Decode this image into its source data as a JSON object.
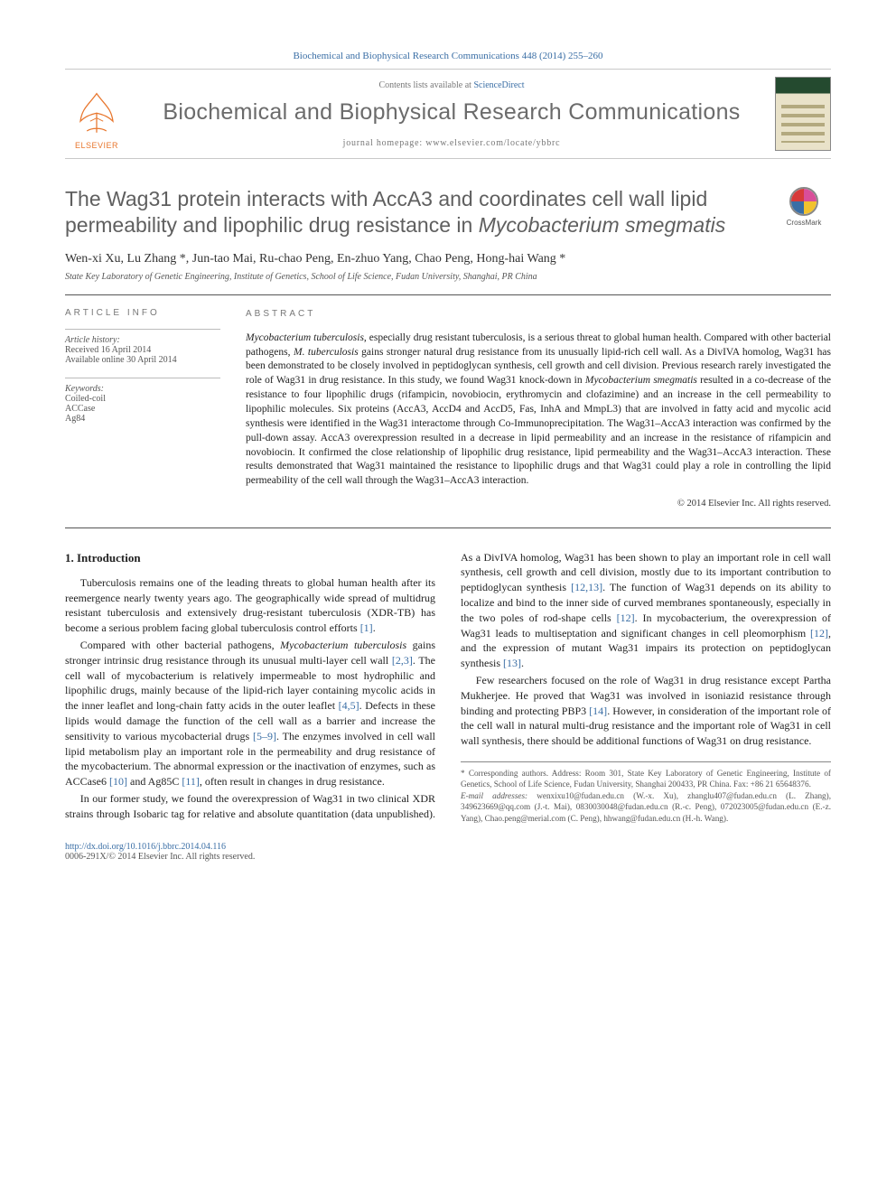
{
  "citation_header": "Biochemical and Biophysical Research Communications 448 (2014) 255–260",
  "contents_prefix": "Contents lists available at ",
  "contents_link": "ScienceDirect",
  "journal_title": "Biochemical and Biophysical Research Communications",
  "journal_home_prefix": "journal homepage: ",
  "journal_home_url": "www.elsevier.com/locate/ybbrc",
  "publisher_word": "ELSEVIER",
  "crossmark_label": "CrossMark",
  "article_title_plain": "The Wag31 protein interacts with AccA3 and coordinates cell wall lipid permeability and lipophilic drug resistance in ",
  "article_title_ital": "Mycobacterium smegmatis",
  "authors_line": "Wen-xi Xu, Lu Zhang *, Jun-tao Mai, Ru-chao Peng, En-zhuo Yang, Chao Peng, Hong-hai Wang *",
  "affiliation": "State Key Laboratory of Genetic Engineering, Institute of Genetics, School of Life Science, Fudan University, Shanghai, PR China",
  "article_info": {
    "heading": "ARTICLE INFO",
    "history_head": "Article history:",
    "received": "Received 16 April 2014",
    "online": "Available online 30 April 2014",
    "keywords_head": "Keywords:",
    "keywords": [
      "Coiled-coil",
      "ACCase",
      "Ag84"
    ]
  },
  "abstract": {
    "heading": "ABSTRACT",
    "body_parts": [
      {
        "ital": true,
        "text": "Mycobacterium tuberculosis"
      },
      {
        "ital": false,
        "text": ", especially drug resistant tuberculosis, is a serious threat to global human health. Compared with other bacterial pathogens, "
      },
      {
        "ital": true,
        "text": "M. tuberculosis"
      },
      {
        "ital": false,
        "text": " gains stronger natural drug resistance from its unusually lipid-rich cell wall. As a DivIVA homolog, Wag31 has been demonstrated to be closely involved in peptidoglycan synthesis, cell growth and cell division. Previous research rarely investigated the role of Wag31 in drug resistance. In this study, we found Wag31 knock-down in "
      },
      {
        "ital": true,
        "text": "Mycobacterium smegmatis"
      },
      {
        "ital": false,
        "text": " resulted in a co-decrease of the resistance to four lipophilic drugs (rifampicin, novobiocin, erythromycin and clofazimine) and an increase in the cell permeability to lipophilic molecules. Six proteins (AccA3, AccD4 and AccD5, Fas, InhA and MmpL3) that are involved in fatty acid and mycolic acid synthesis were identified in the Wag31 interactome through Co-Immunoprecipitation. The Wag31–AccA3 interaction was confirmed by the pull-down assay. AccA3 overexpression resulted in a decrease in lipid permeability and an increase in the resistance of rifampicin and novobiocin. It confirmed the close relationship of lipophilic drug resistance, lipid permeability and the Wag31–AccA3 interaction. These results demonstrated that Wag31 maintained the resistance to lipophilic drugs and that Wag31 could play a role in controlling the lipid permeability of the cell wall through the Wag31–AccA3 interaction."
      }
    ],
    "copyright": "© 2014 Elsevier Inc. All rights reserved."
  },
  "section1": {
    "heading": "1. Introduction",
    "p1": "Tuberculosis remains one of the leading threats to global human health after its reemergence nearly twenty years ago. The geographically wide spread of multidrug resistant tuberculosis and extensively drug-resistant tuberculosis (XDR-TB) has become a serious problem facing global tuberculosis control efforts ",
    "p1_ref": "[1]",
    "p1_end": ".",
    "p2a": "Compared with other bacterial pathogens, ",
    "p2_it1": "Mycobacterium tuberculosis",
    "p2b": " gains stronger intrinsic drug resistance through its unusual multi-layer cell wall ",
    "p2_ref1": "[2,3]",
    "p2c": ". The cell wall of mycobacterium is relatively impermeable to most hydrophilic and lipophilic drugs, mainly because of the lipid-rich layer containing mycolic acids in the inner leaflet and long-chain fatty acids in the outer leaflet ",
    "p2_ref2": "[4,5]",
    "p2d": ". Defects in these lipids would damage the function of the cell wall as a barrier and increase the sensitivity to various mycobacterial drugs ",
    "p2_ref3": "[5–9]",
    "p2e": ". The enzymes involved in cell wall lipid metabolism play an important role in the permeability and drug resistance of the mycobacterium. The abnormal expression or the inactivation of enzymes, such as ACCase6 ",
    "p2_ref4": "[10]",
    "p2f": " and Ag85C ",
    "p2_ref5": "[11]",
    "p2g": ", often result in changes in drug resistance.",
    "p3a": "In our former study, we found the overexpression of Wag31 in two clinical XDR strains through Isobaric tag for relative and absolute quantitation (data unpublished). As a DivIVA homolog, Wag31 has been shown to play an important role in cell wall synthesis, cell growth and cell division, mostly due to its important contribution to peptidoglycan synthesis ",
    "p3_ref1": "[12,13]",
    "p3b": ". The function of Wag31 depends on its ability to localize and bind to the inner side of curved membranes spontaneously, especially in the two poles of rod-shape cells ",
    "p3_ref2": "[12]",
    "p3c": ". In mycobacterium, the overexpression of Wag31 leads to multiseptation and significant changes in cell pleomorphism ",
    "p3_ref3": "[12]",
    "p3d": ", and the expression of mutant Wag31 impairs its protection on peptidoglycan synthesis ",
    "p3_ref4": "[13]",
    "p3e": ".",
    "p4a": "Few researchers focused on the role of Wag31 in drug resistance except Partha Mukherjee. He proved that Wag31 was involved in isoniazid resistance through binding and protecting PBP3 ",
    "p4_ref1": "[14]",
    "p4b": ". However, in consideration of the important role of the cell wall in natural multi-drug resistance and the important role of Wag31 in cell wall synthesis, there should be additional functions of Wag31 on drug resistance."
  },
  "footnote": {
    "corr": "* Corresponding authors. Address: Room 301, State Key Laboratory of Genetic Engineering, Institute of Genetics, School of Life Science, Fudan University, Shanghai 200433, PR China. Fax: +86 21 65648376.",
    "emails_label": "E-mail addresses: ",
    "emails": "wenxixu10@fudan.edu.cn (W.-x. Xu), zhanglu407@fudan.edu.cn (L. Zhang), 349623669@qq.com (J.-t. Mai), 0830030048@fudan.edu.cn (R.-c. Peng), 072023005@fudan.edu.cn (E.-z. Yang), Chao.peng@merial.com (C. Peng), hhwang@fudan.edu.cn (H.-h. Wang)."
  },
  "doi": {
    "url": "http://dx.doi.org/10.1016/j.bbrc.2014.04.116",
    "issn_line": "0006-291X/© 2014 Elsevier Inc. All rights reserved."
  },
  "colors": {
    "link": "#3a6ea5",
    "elsevier_orange": "#e8762d",
    "grey_text": "#6b6b6b"
  }
}
